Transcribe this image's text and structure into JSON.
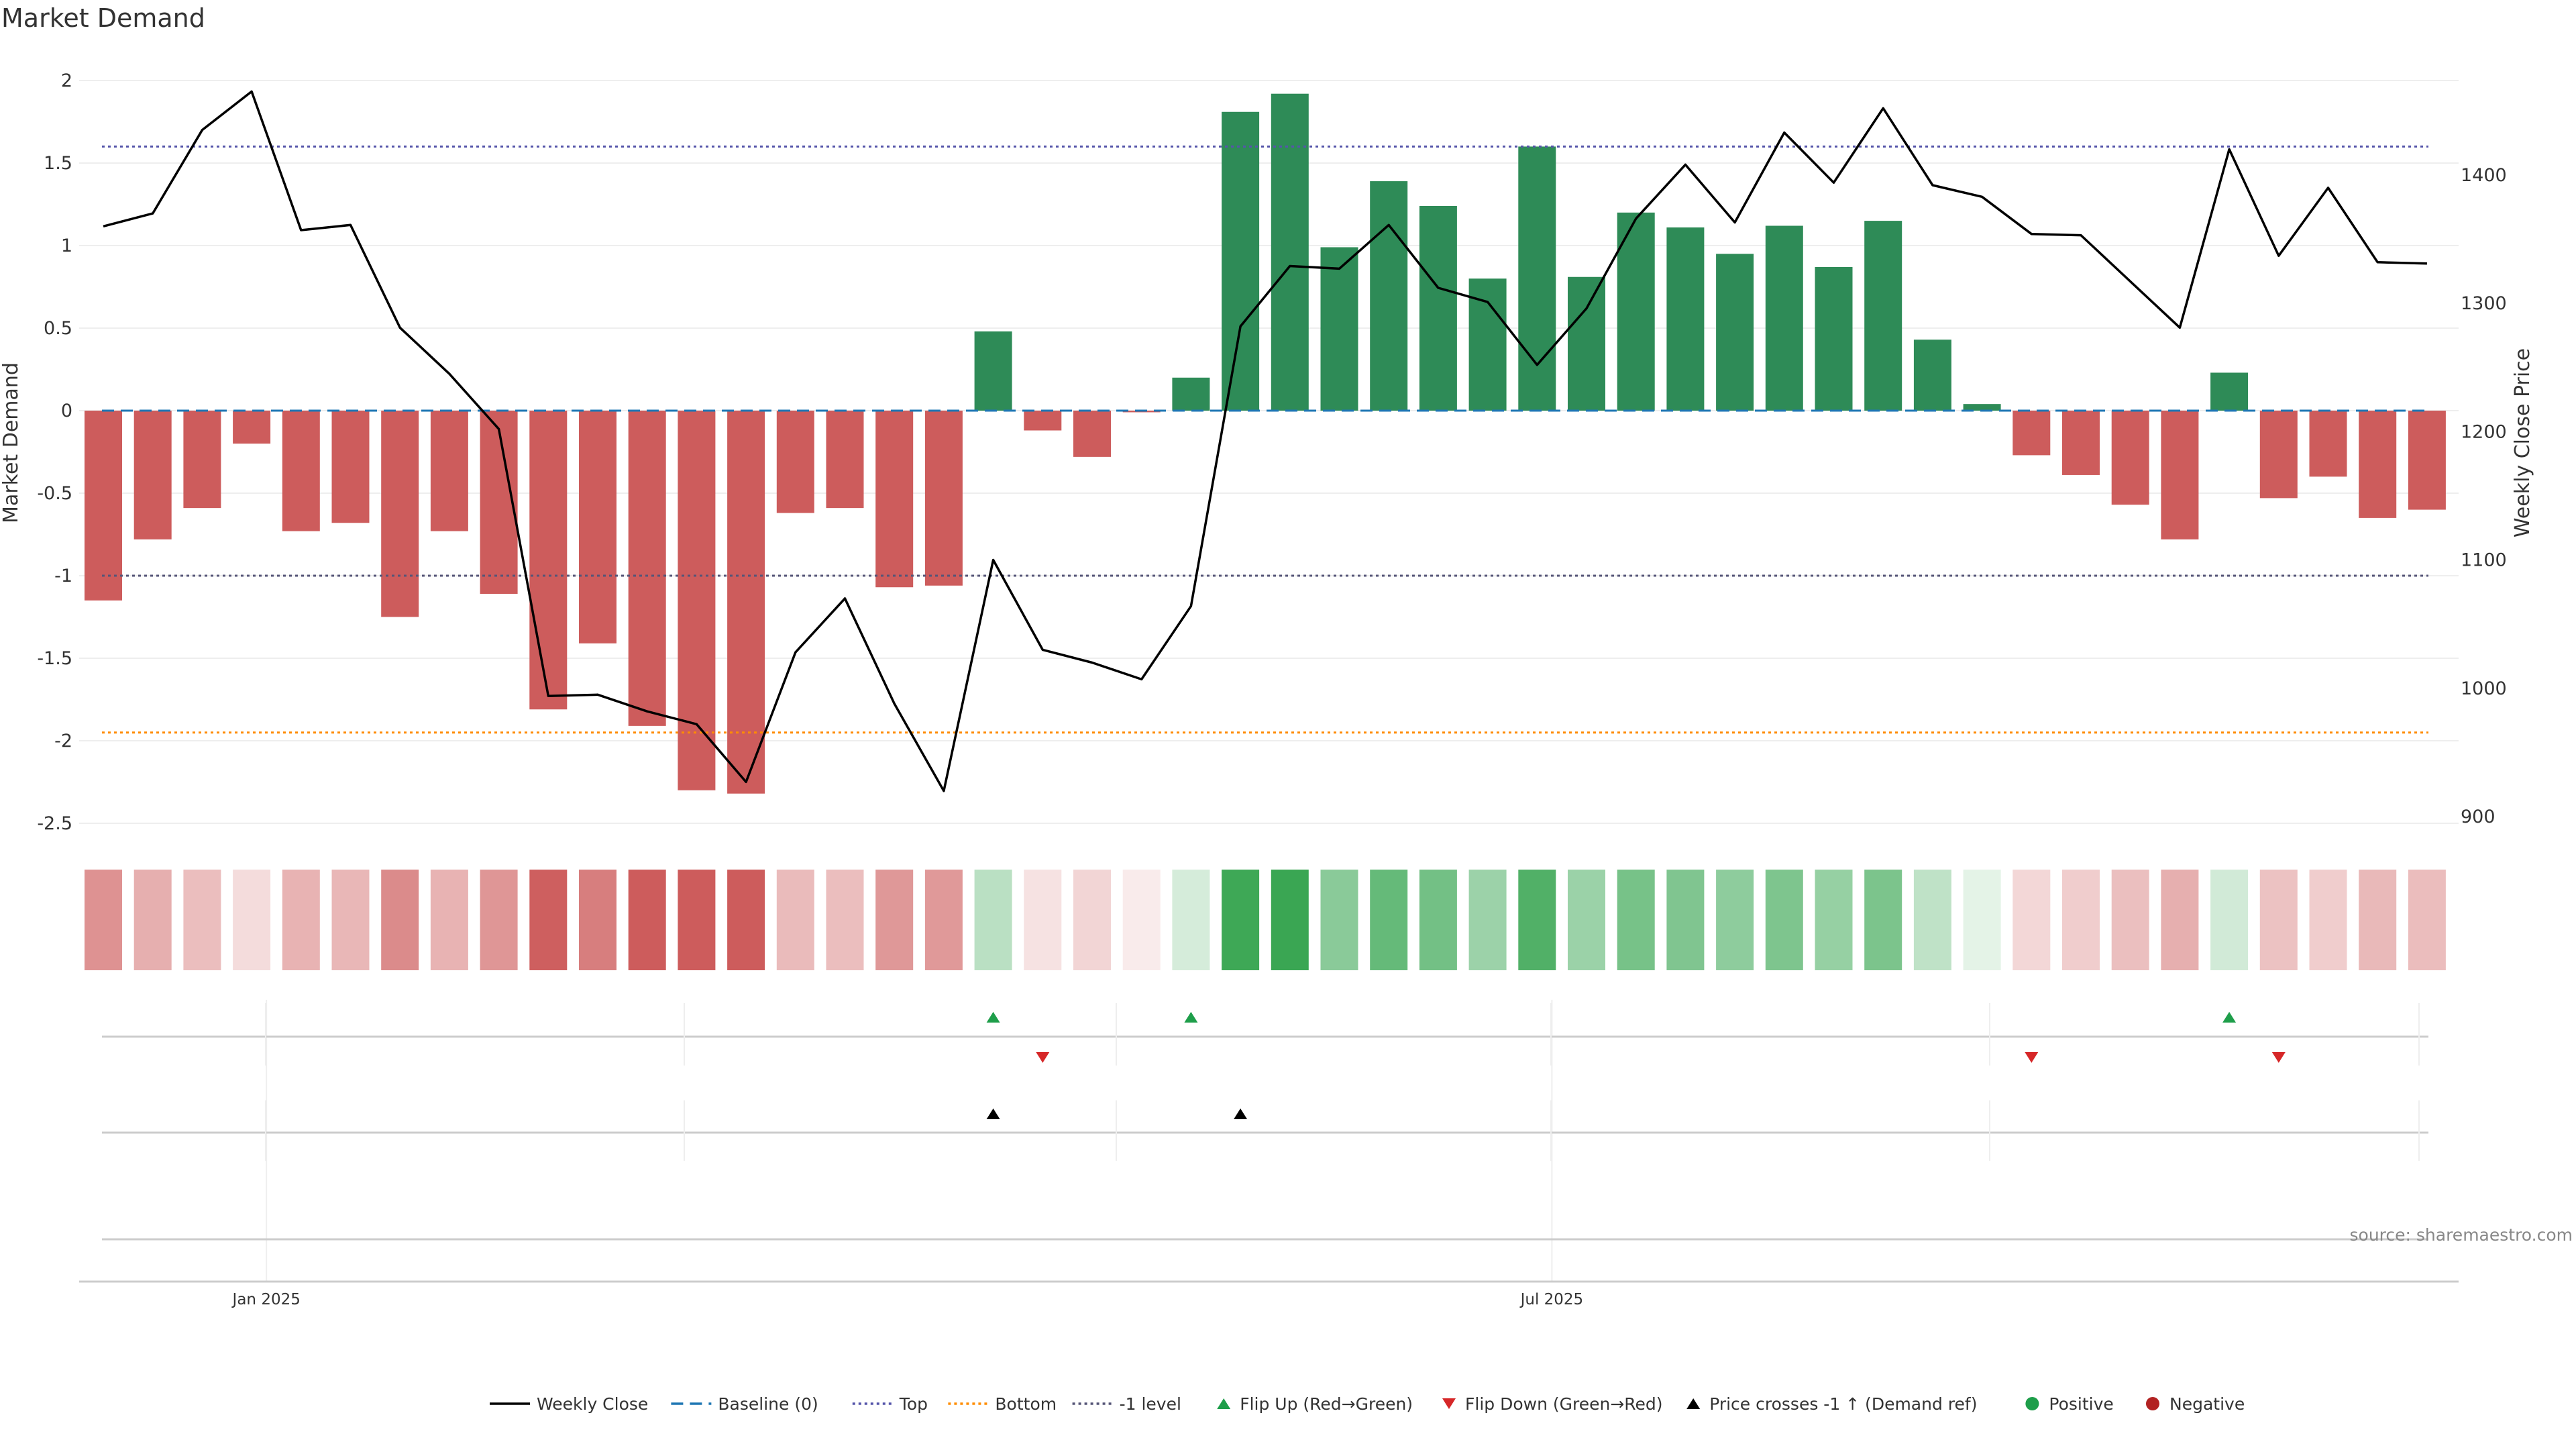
{
  "chart_data": {
    "type": "bar",
    "title": "Market Demand",
    "ylabel_left": "Market Demand",
    "ylabel_right": "Weekly Close Price",
    "ylim_left": [
      -2.5,
      2
    ],
    "ylim_right": [
      900,
      1450
    ],
    "left_ticks": [
      "2",
      "1.5",
      "1",
      "0.5",
      "0",
      "-0.5",
      "-1",
      "-1.5",
      "-2",
      "-2.5"
    ],
    "right_ticks": [
      "1400",
      "1300",
      "1200",
      "1100",
      "1000",
      "900"
    ],
    "x_ticks": [
      {
        "label": "Jan 2025",
        "index": 3.3
      },
      {
        "label": "Jul 2025",
        "index": 29.3
      }
    ],
    "grid": true,
    "reference_lines": {
      "top": 1.6,
      "bottom": -1.95,
      "minus_one": -1.0,
      "baseline": 0
    },
    "demand": [
      -1.15,
      -0.78,
      -0.59,
      -0.2,
      -0.73,
      -0.68,
      -1.25,
      -0.73,
      -1.11,
      -1.81,
      -1.41,
      -1.91,
      -2.3,
      -2.32,
      -0.62,
      -0.59,
      -1.07,
      -1.06,
      0.48,
      -0.12,
      -0.28,
      -0.01,
      0.2,
      1.81,
      1.92,
      0.99,
      1.39,
      1.24,
      0.8,
      1.6,
      0.81,
      1.2,
      1.11,
      0.95,
      1.12,
      0.87,
      1.15,
      0.43,
      0.04,
      -0.27,
      -0.39,
      -0.57,
      -0.78,
      0.23,
      -0.53,
      -0.4,
      -0.65,
      -0.6
    ],
    "weekly_close": [
      1360,
      1370,
      1435,
      1465,
      1357,
      1361,
      1281,
      1245,
      1202,
      994,
      995,
      982,
      972,
      927,
      1028,
      1070,
      988,
      920,
      1100,
      1030,
      1020,
      1007,
      1064,
      1282,
      1329,
      1327,
      1361,
      1312,
      1301,
      1252,
      1296,
      1366,
      1408,
      1363,
      1433,
      1394,
      1452,
      1392,
      1383,
      1354,
      1353,
      1317,
      1281,
      1420,
      1337,
      1390,
      1332,
      1331
    ],
    "flip_up_weeks": [
      18,
      22,
      43
    ],
    "flip_down_weeks": [
      19,
      39,
      44
    ],
    "price_cross_weeks": [
      18,
      23
    ],
    "legend": [
      "Weekly Close",
      "Baseline (0)",
      "Top",
      "Bottom",
      "-1 level",
      "Flip Up (Red→Green)",
      "Flip Down (Green→Red)",
      "Price crosses -1 ↑ (Demand ref)",
      "Positive",
      "Negative"
    ],
    "legend_placement": "bottom-center"
  },
  "source": "source: sharemaestro.com",
  "colors": {
    "positive": "#2e8b57",
    "negative": "#cd5c5c",
    "price_line": "#000000",
    "baseline": "#1f77b4",
    "top_line": "#5555aa",
    "bottom_line": "#ff8c00",
    "minus_one_line": "#555577",
    "flip_up": "#1e9e4a",
    "flip_down": "#d62728",
    "price_cross": "#000000"
  }
}
